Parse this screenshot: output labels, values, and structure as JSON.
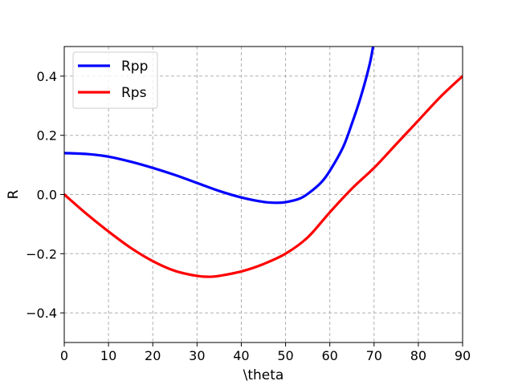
{
  "chart_data": {
    "type": "line",
    "title": "",
    "xlabel": "\\theta",
    "ylabel": "R",
    "xlim": [
      0,
      90
    ],
    "ylim": [
      -0.5,
      0.5
    ],
    "xticks": [
      0,
      10,
      20,
      30,
      40,
      50,
      60,
      70,
      80,
      90
    ],
    "yticks": [
      -0.4,
      -0.2,
      0.0,
      0.2,
      0.4
    ],
    "xtick_labels": [
      "0",
      "10",
      "20",
      "30",
      "40",
      "50",
      "60",
      "70",
      "80",
      "90"
    ],
    "ytick_labels": [
      "−0.4",
      "−0.2",
      "0.0",
      "0.2",
      "0.4"
    ],
    "grid": true,
    "legend_position": "top-left",
    "series": [
      {
        "name": "Rpp",
        "color": "#0000ff",
        "x": [
          0,
          5,
          10,
          15,
          20,
          25,
          30,
          35,
          40,
          45,
          48,
          50,
          53,
          55,
          58,
          60,
          63,
          65,
          67,
          69,
          70
        ],
        "y": [
          0.14,
          0.137,
          0.128,
          0.111,
          0.09,
          0.066,
          0.039,
          0.012,
          -0.01,
          -0.025,
          -0.028,
          -0.026,
          -0.015,
          0.002,
          0.04,
          0.08,
          0.16,
          0.24,
          0.33,
          0.44,
          0.52
        ]
      },
      {
        "name": "Rps",
        "color": "#ff0000",
        "x": [
          0,
          5,
          10,
          15,
          20,
          25,
          30,
          33,
          35,
          40,
          45,
          50,
          55,
          60,
          65,
          70,
          75,
          80,
          85,
          90
        ],
        "y": [
          0.0,
          -0.065,
          -0.125,
          -0.18,
          -0.225,
          -0.258,
          -0.275,
          -0.278,
          -0.275,
          -0.26,
          -0.235,
          -0.2,
          -0.145,
          -0.06,
          0.02,
          0.09,
          0.17,
          0.25,
          0.33,
          0.4
        ]
      }
    ]
  }
}
